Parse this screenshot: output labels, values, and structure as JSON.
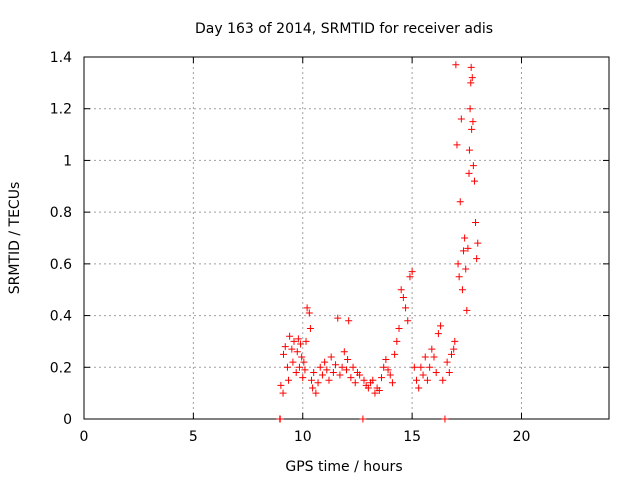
{
  "chart_data": {
    "type": "scatter",
    "title": "Day 163 of 2014, SRMTID for receiver adis",
    "xlabel": "GPS time / hours",
    "ylabel": "SRMTID / TECUs",
    "xlim": [
      0,
      24
    ],
    "ylim": [
      0,
      1.4
    ],
    "x_ticks": [
      0,
      5,
      10,
      15,
      20
    ],
    "x_tick_labels": [
      "0",
      "5",
      "10",
      "15",
      "20"
    ],
    "y_ticks": [
      0,
      0.2,
      0.4,
      0.6,
      0.8,
      1.0,
      1.2,
      1.4
    ],
    "y_tick_labels": [
      "0",
      "0.2",
      "0.4",
      "0.6",
      "0.8",
      "1",
      "1.2",
      "1.4"
    ],
    "grid": true,
    "marker": "+",
    "series": [
      {
        "name": "SRMTID",
        "color": "#ff0000",
        "x": [
          8.95,
          8.97,
          9.0,
          9.1,
          9.12,
          9.2,
          9.3,
          9.35,
          9.4,
          9.5,
          9.55,
          9.6,
          9.7,
          9.75,
          9.8,
          9.85,
          9.9,
          9.95,
          10.0,
          10.05,
          10.1,
          10.15,
          10.2,
          10.3,
          10.35,
          10.4,
          10.45,
          10.5,
          10.6,
          10.7,
          10.8,
          10.9,
          11.0,
          11.1,
          11.2,
          11.3,
          11.4,
          11.5,
          11.6,
          11.7,
          11.8,
          11.9,
          12.0,
          12.05,
          12.1,
          12.2,
          12.3,
          12.4,
          12.5,
          12.6,
          12.75,
          12.8,
          12.9,
          13.0,
          13.1,
          13.2,
          13.3,
          13.4,
          13.5,
          13.6,
          13.7,
          13.8,
          13.9,
          14.0,
          14.1,
          14.2,
          14.3,
          14.4,
          14.5,
          14.6,
          14.7,
          14.8,
          14.9,
          15.0,
          15.1,
          15.2,
          15.3,
          15.4,
          15.5,
          15.6,
          15.7,
          15.8,
          15.9,
          16.0,
          16.1,
          16.2,
          16.3,
          16.4,
          16.5,
          16.6,
          16.7,
          16.8,
          16.9,
          16.95,
          17.0,
          17.05,
          17.1,
          17.15,
          17.2,
          17.25,
          17.3,
          17.35,
          17.4,
          17.45,
          17.5,
          17.55,
          17.6,
          17.62,
          17.65,
          17.68,
          17.7,
          17.72,
          17.75,
          17.78,
          17.8,
          17.85,
          17.9,
          17.95,
          18.0
        ],
        "y": [
          0.0,
          0.0,
          0.13,
          0.1,
          0.25,
          0.28,
          0.2,
          0.15,
          0.32,
          0.27,
          0.22,
          0.3,
          0.18,
          0.26,
          0.31,
          0.2,
          0.29,
          0.24,
          0.16,
          0.22,
          0.19,
          0.3,
          0.43,
          0.41,
          0.35,
          0.15,
          0.12,
          0.18,
          0.1,
          0.14,
          0.2,
          0.17,
          0.22,
          0.19,
          0.15,
          0.24,
          0.18,
          0.21,
          0.39,
          0.17,
          0.2,
          0.26,
          0.19,
          0.23,
          0.38,
          0.16,
          0.2,
          0.14,
          0.18,
          0.17,
          0.0,
          0.15,
          0.13,
          0.12,
          0.14,
          0.15,
          0.1,
          0.12,
          0.11,
          0.16,
          0.2,
          0.23,
          0.19,
          0.17,
          0.14,
          0.25,
          0.3,
          0.35,
          0.5,
          0.47,
          0.43,
          0.38,
          0.55,
          0.57,
          0.2,
          0.15,
          0.12,
          0.2,
          0.17,
          0.24,
          0.15,
          0.2,
          0.27,
          0.24,
          0.18,
          0.33,
          0.36,
          0.15,
          0.0,
          0.22,
          0.18,
          0.25,
          0.27,
          0.3,
          1.37,
          1.06,
          0.6,
          0.55,
          0.84,
          1.16,
          0.5,
          0.65,
          0.7,
          0.58,
          0.42,
          0.66,
          0.95,
          1.04,
          1.2,
          1.3,
          1.36,
          1.12,
          1.32,
          1.15,
          0.98,
          0.92,
          0.76,
          0.62,
          0.68
        ]
      }
    ]
  }
}
